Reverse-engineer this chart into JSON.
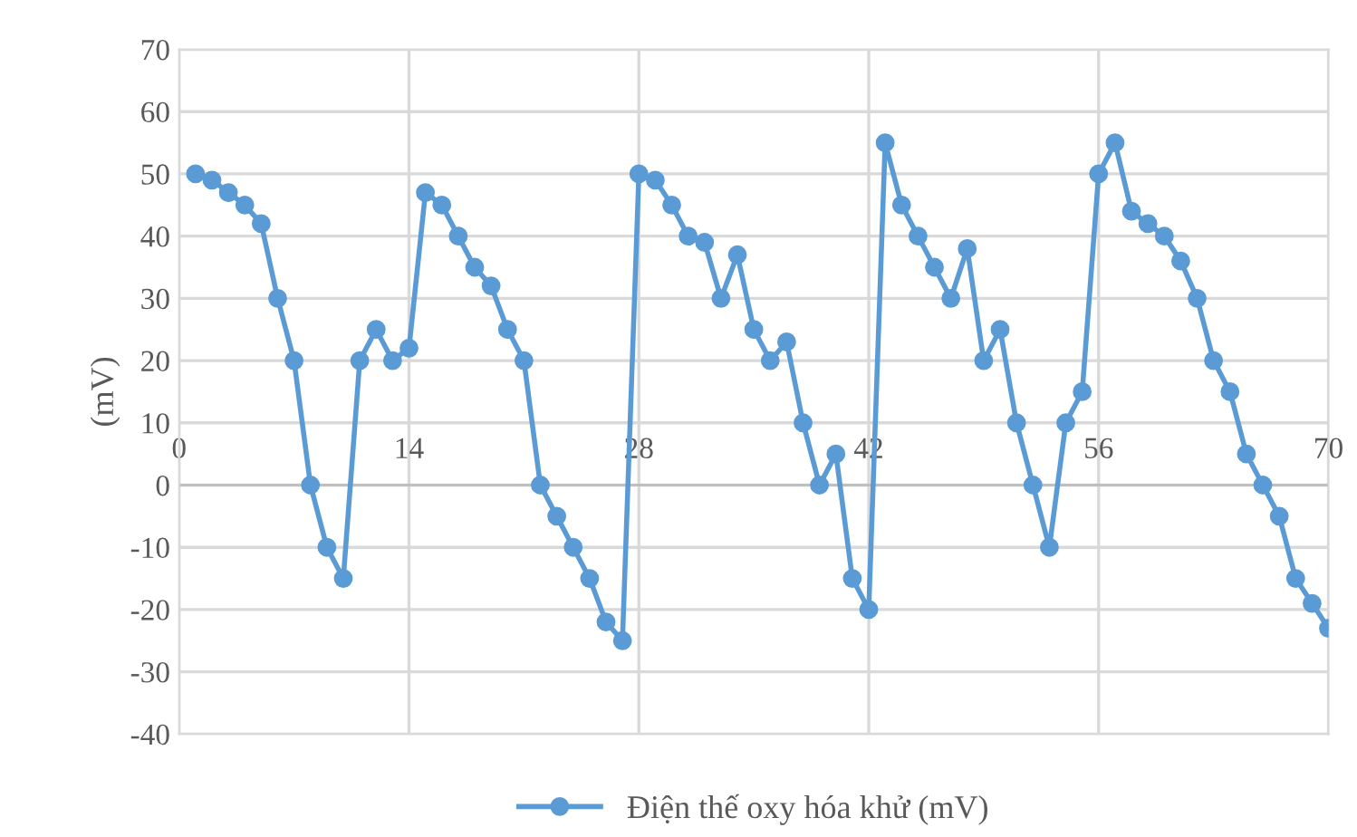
{
  "chart_data": {
    "type": "line",
    "ylabel": "(mV)",
    "x": [
      1,
      2,
      3,
      4,
      5,
      6,
      7,
      8,
      9,
      10,
      11,
      12,
      13,
      14,
      15,
      16,
      17,
      18,
      19,
      20,
      21,
      22,
      23,
      24,
      25,
      26,
      27,
      28,
      29,
      30,
      31,
      32,
      33,
      34,
      35,
      36,
      37,
      38,
      39,
      40,
      41,
      42,
      43,
      44,
      45,
      46,
      47,
      48,
      49,
      50,
      51,
      52,
      53,
      54,
      55,
      56,
      57,
      58,
      59,
      60,
      61,
      62,
      63,
      64,
      65,
      66,
      67,
      68,
      69,
      70
    ],
    "series": [
      {
        "name": "Điện thế oxy hóa khử (mV)",
        "color": "#5b9bd5",
        "values": [
          50,
          49,
          47,
          45,
          42,
          30,
          20,
          0,
          -10,
          -15,
          20,
          25,
          20,
          22,
          47,
          45,
          40,
          35,
          32,
          25,
          20,
          0,
          -5,
          -10,
          -15,
          -22,
          -25,
          50,
          49,
          45,
          40,
          39,
          30,
          37,
          25,
          20,
          23,
          10,
          0,
          5,
          -15,
          -20,
          55,
          45,
          40,
          35,
          30,
          38,
          20,
          25,
          10,
          0,
          -10,
          10,
          15,
          50,
          55,
          44,
          42,
          40,
          36,
          30,
          20,
          15,
          5,
          0,
          -5,
          -15,
          -19,
          -23
        ]
      }
    ],
    "xlim": [
      0,
      70
    ],
    "xticks": [
      0,
      14,
      28,
      42,
      56,
      70
    ],
    "ylim": [
      -40,
      70
    ],
    "yticks": [
      -40,
      -30,
      -20,
      -10,
      0,
      10,
      20,
      30,
      40,
      50,
      60,
      70
    ],
    "grid": true,
    "legend": "bottom",
    "marker": "circle",
    "line_style": "solid"
  }
}
